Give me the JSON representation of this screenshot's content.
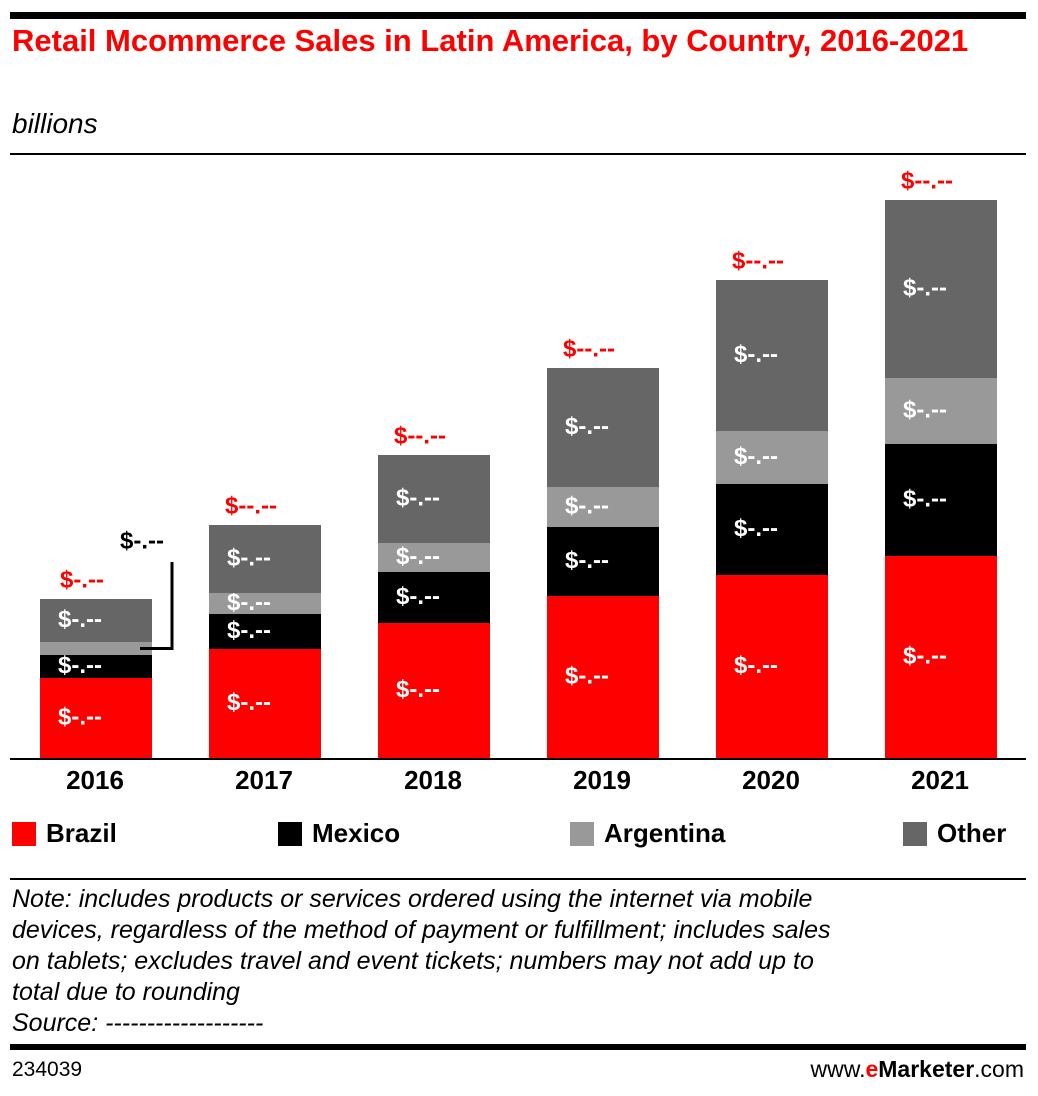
{
  "chart_data": {
    "type": "bar",
    "stacked": true,
    "title": "Retail Mcommerce Sales in Latin America, by Country, 2016-2021",
    "subtitle": "billions",
    "categories": [
      "2016",
      "2017",
      "2018",
      "2019",
      "2020",
      "2021"
    ],
    "series": [
      {
        "name": "Brazil",
        "color": "#ff0000",
        "values": [
          4.0,
          5.45,
          6.75,
          8.1,
          9.15,
          10.1
        ],
        "value_labels": [
          "$-.--",
          "$-.--",
          "$-.--",
          "$-.--",
          "$-.--",
          "$-.--"
        ]
      },
      {
        "name": "Mexico",
        "color": "#000000",
        "values": [
          1.15,
          1.75,
          2.55,
          3.45,
          4.55,
          5.6
        ],
        "value_labels": [
          "$-.--",
          "$-.--",
          "$-.--",
          "$-.--",
          "$-.--",
          "$-.--"
        ]
      },
      {
        "name": "Argentina",
        "color": "#999999",
        "values": [
          0.65,
          1.05,
          1.45,
          2.0,
          2.65,
          3.3
        ],
        "value_labels": [
          "$-.--",
          "$-.--",
          "$-.--",
          "$-.--",
          "$-.--",
          "$-.--"
        ]
      },
      {
        "name": "Other",
        "color": "#666666",
        "values": [
          2.15,
          3.4,
          4.4,
          5.95,
          7.55,
          8.9
        ],
        "value_labels": [
          "$-.--",
          "$-.--",
          "$-.--",
          "$-.--",
          "$-.--",
          "$-.--"
        ]
      }
    ],
    "totals": {
      "color": "#ff0000",
      "values": [
        7.95,
        11.65,
        15.15,
        19.5,
        23.9,
        27.9
      ],
      "value_labels": [
        "$-.--",
        "$--.--",
        "$--.--",
        "$--.--",
        "$--.--",
        "$--.--"
      ]
    }
  },
  "note": [
    "Note: includes products or services ordered using the internet via mobile",
    "devices, regardless of the method of payment or fulfillment; includes sales",
    "on tablets; excludes travel and event tickets; numbers may not add up to",
    "total due to rounding",
    "Source: -------------------"
  ],
  "footer": {
    "id": "234039",
    "brand_prefix": "www.",
    "brand_e": "e",
    "brand_name": "Marketer",
    "brand_suffix": ".com"
  }
}
